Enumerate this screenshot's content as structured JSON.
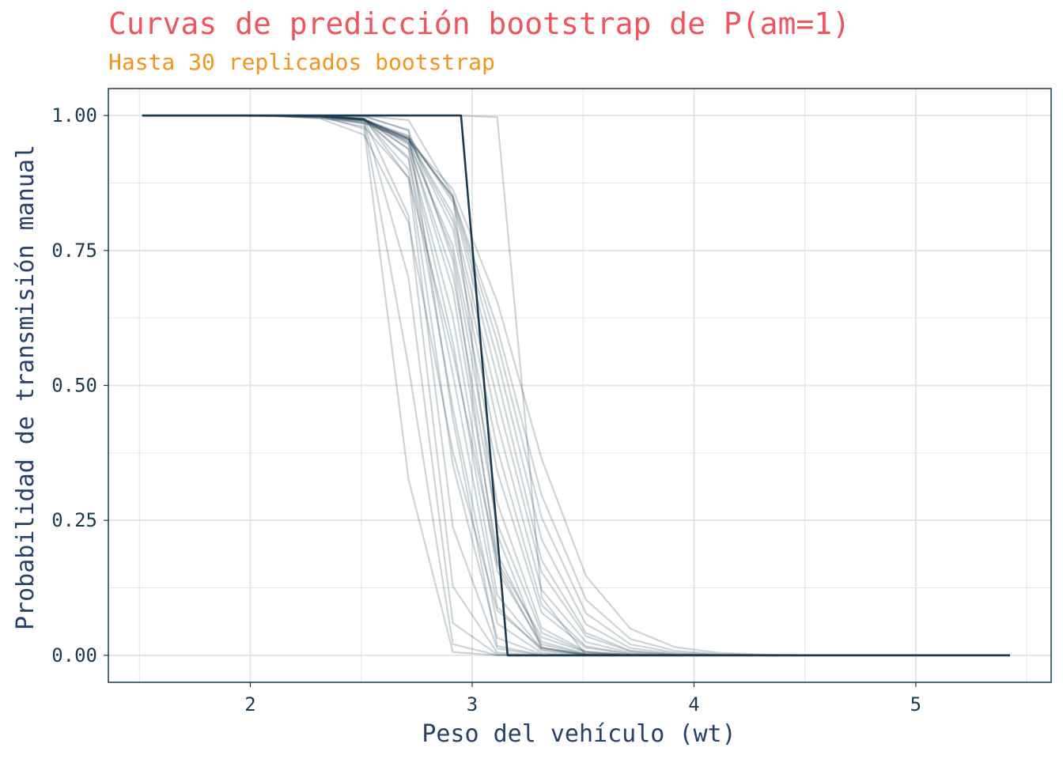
{
  "chart_data": {
    "type": "line",
    "title": "Curvas de predicción bootstrap de P(am=1)",
    "subtitle": "Hasta 30 replicados bootstrap",
    "xlabel": "Peso del vehículo (wt)",
    "ylabel": "Probabilidad de transmisión manual",
    "xlim": [
      1.36,
      5.61
    ],
    "ylim": [
      -0.05,
      1.05
    ],
    "x_ticks": [
      2,
      3,
      4,
      5
    ],
    "x_tick_labels": [
      "2",
      "3",
      "4",
      "5"
    ],
    "y_ticks": [
      0,
      0.25,
      0.5,
      0.75,
      1
    ],
    "y_tick_labels": [
      "0.00",
      "0.25",
      "0.50",
      "0.75",
      "1.00"
    ],
    "grid": true,
    "legend": "none",
    "colors": {
      "line": "#1c3a4f",
      "panel_border": "#1c3a4f",
      "grid": "#e5e5e5",
      "title": "#f0555f",
      "subtitle": "#f5931f"
    },
    "x": [
      1.513,
      1.713,
      1.913,
      2.113,
      2.313,
      2.513,
      2.713,
      2.913,
      3.113,
      3.313,
      3.513,
      3.713,
      3.913,
      4.113,
      4.313,
      4.513,
      4.713,
      4.913,
      5.113,
      5.313,
      5.424
    ],
    "highlight": {
      "values": [
        1,
        1,
        1,
        1,
        1,
        1,
        1,
        1,
        0,
        0,
        0,
        0,
        0,
        0,
        0,
        0,
        0,
        0,
        0,
        0,
        0
      ],
      "points": [
        [
          1.513,
          1
        ],
        [
          2.95,
          1
        ],
        [
          3.16,
          0
        ],
        [
          5.424,
          0
        ]
      ]
    },
    "replicates": [
      {
        "mid": 2.68,
        "slope": 22
      },
      {
        "mid": 2.72,
        "slope": 20
      },
      {
        "mid": 2.76,
        "slope": 18
      },
      {
        "mid": 2.8,
        "slope": 17
      },
      {
        "mid": 2.84,
        "slope": 16
      },
      {
        "mid": 2.87,
        "slope": 14
      },
      {
        "mid": 2.9,
        "slope": 13
      },
      {
        "mid": 2.92,
        "slope": 12
      },
      {
        "mid": 2.94,
        "slope": 12
      },
      {
        "mid": 2.96,
        "slope": 11
      },
      {
        "mid": 2.98,
        "slope": 11
      },
      {
        "mid": 3.0,
        "slope": 10
      },
      {
        "mid": 3.02,
        "slope": 10
      },
      {
        "mid": 3.04,
        "slope": 9
      },
      {
        "mid": 3.06,
        "slope": 9
      },
      {
        "mid": 3.08,
        "slope": 8.5
      },
      {
        "mid": 3.1,
        "slope": 8
      },
      {
        "mid": 3.12,
        "slope": 8
      },
      {
        "mid": 3.14,
        "slope": 7.5
      },
      {
        "mid": 3.16,
        "slope": 7
      },
      {
        "mid": 2.94,
        "slope": 9
      },
      {
        "mid": 2.99,
        "slope": 13
      },
      {
        "mid": 3.03,
        "slope": 15
      },
      {
        "mid": 2.86,
        "slope": 9.5
      },
      {
        "mid": 3.18,
        "slope": 6.5
      },
      {
        "mid": 3.22,
        "slope": 6
      },
      {
        "mid": 2.9,
        "slope": 19
      },
      {
        "mid": 3.26,
        "slope": 40
      }
    ]
  }
}
